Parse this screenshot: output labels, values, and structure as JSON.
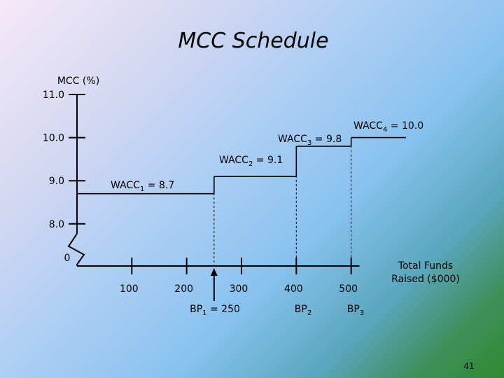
{
  "slide": {
    "title": "MCC Schedule",
    "page_number": "41"
  },
  "chart_data": {
    "type": "line",
    "title": "MCC Schedule",
    "ylabel": "MCC (%)",
    "xlabel": "Total Funds Raised ($000)",
    "xlabel_lines": [
      "Total Funds",
      "Raised ($000)"
    ],
    "ylim": [
      8.0,
      11.0
    ],
    "xlim": [
      0,
      500
    ],
    "y_ticks": [
      {
        "value": 11.0,
        "label": "11.0"
      },
      {
        "value": 10.0,
        "label": "10.0"
      },
      {
        "value": 9.0,
        "label": "9.0"
      },
      {
        "value": 8.0,
        "label": "8.0"
      }
    ],
    "y_origin_label": "0",
    "x_ticks": [
      {
        "value": 100,
        "label": "100"
      },
      {
        "value": 200,
        "label": "200"
      },
      {
        "value": 300,
        "label": "300"
      },
      {
        "value": 400,
        "label": "400"
      },
      {
        "value": 500,
        "label": "500"
      }
    ],
    "segments": [
      {
        "name": "WACC1",
        "base": "WACC",
        "subscript": "1",
        "suffix": " = 8.7",
        "value": 8.7,
        "x_start": 0,
        "x_end": 250
      },
      {
        "name": "WACC2",
        "base": "WACC",
        "subscript": "2",
        "suffix": " = 9.1",
        "value": 9.1,
        "x_start": 250,
        "x_end": 400
      },
      {
        "name": "WACC3",
        "base": "WACC",
        "subscript": "3",
        "suffix": " = 9.8",
        "value": 9.8,
        "x_start": 400,
        "x_end": 500
      },
      {
        "name": "WACC4",
        "base": "WACC",
        "subscript": "4",
        "suffix": " = 10.0",
        "value": 10.0,
        "x_start": 500,
        "x_end": 600
      }
    ],
    "break_points": [
      {
        "name": "BP1",
        "base": "BP",
        "subscript": "1",
        "suffix": " = 250",
        "x": 250
      },
      {
        "name": "BP2",
        "base": "BP",
        "subscript": "2",
        "suffix": "",
        "x": 400
      },
      {
        "name": "BP3",
        "base": "BP",
        "subscript": "3",
        "suffix": "",
        "x": 500
      }
    ],
    "grid": false,
    "axis_break": true
  }
}
